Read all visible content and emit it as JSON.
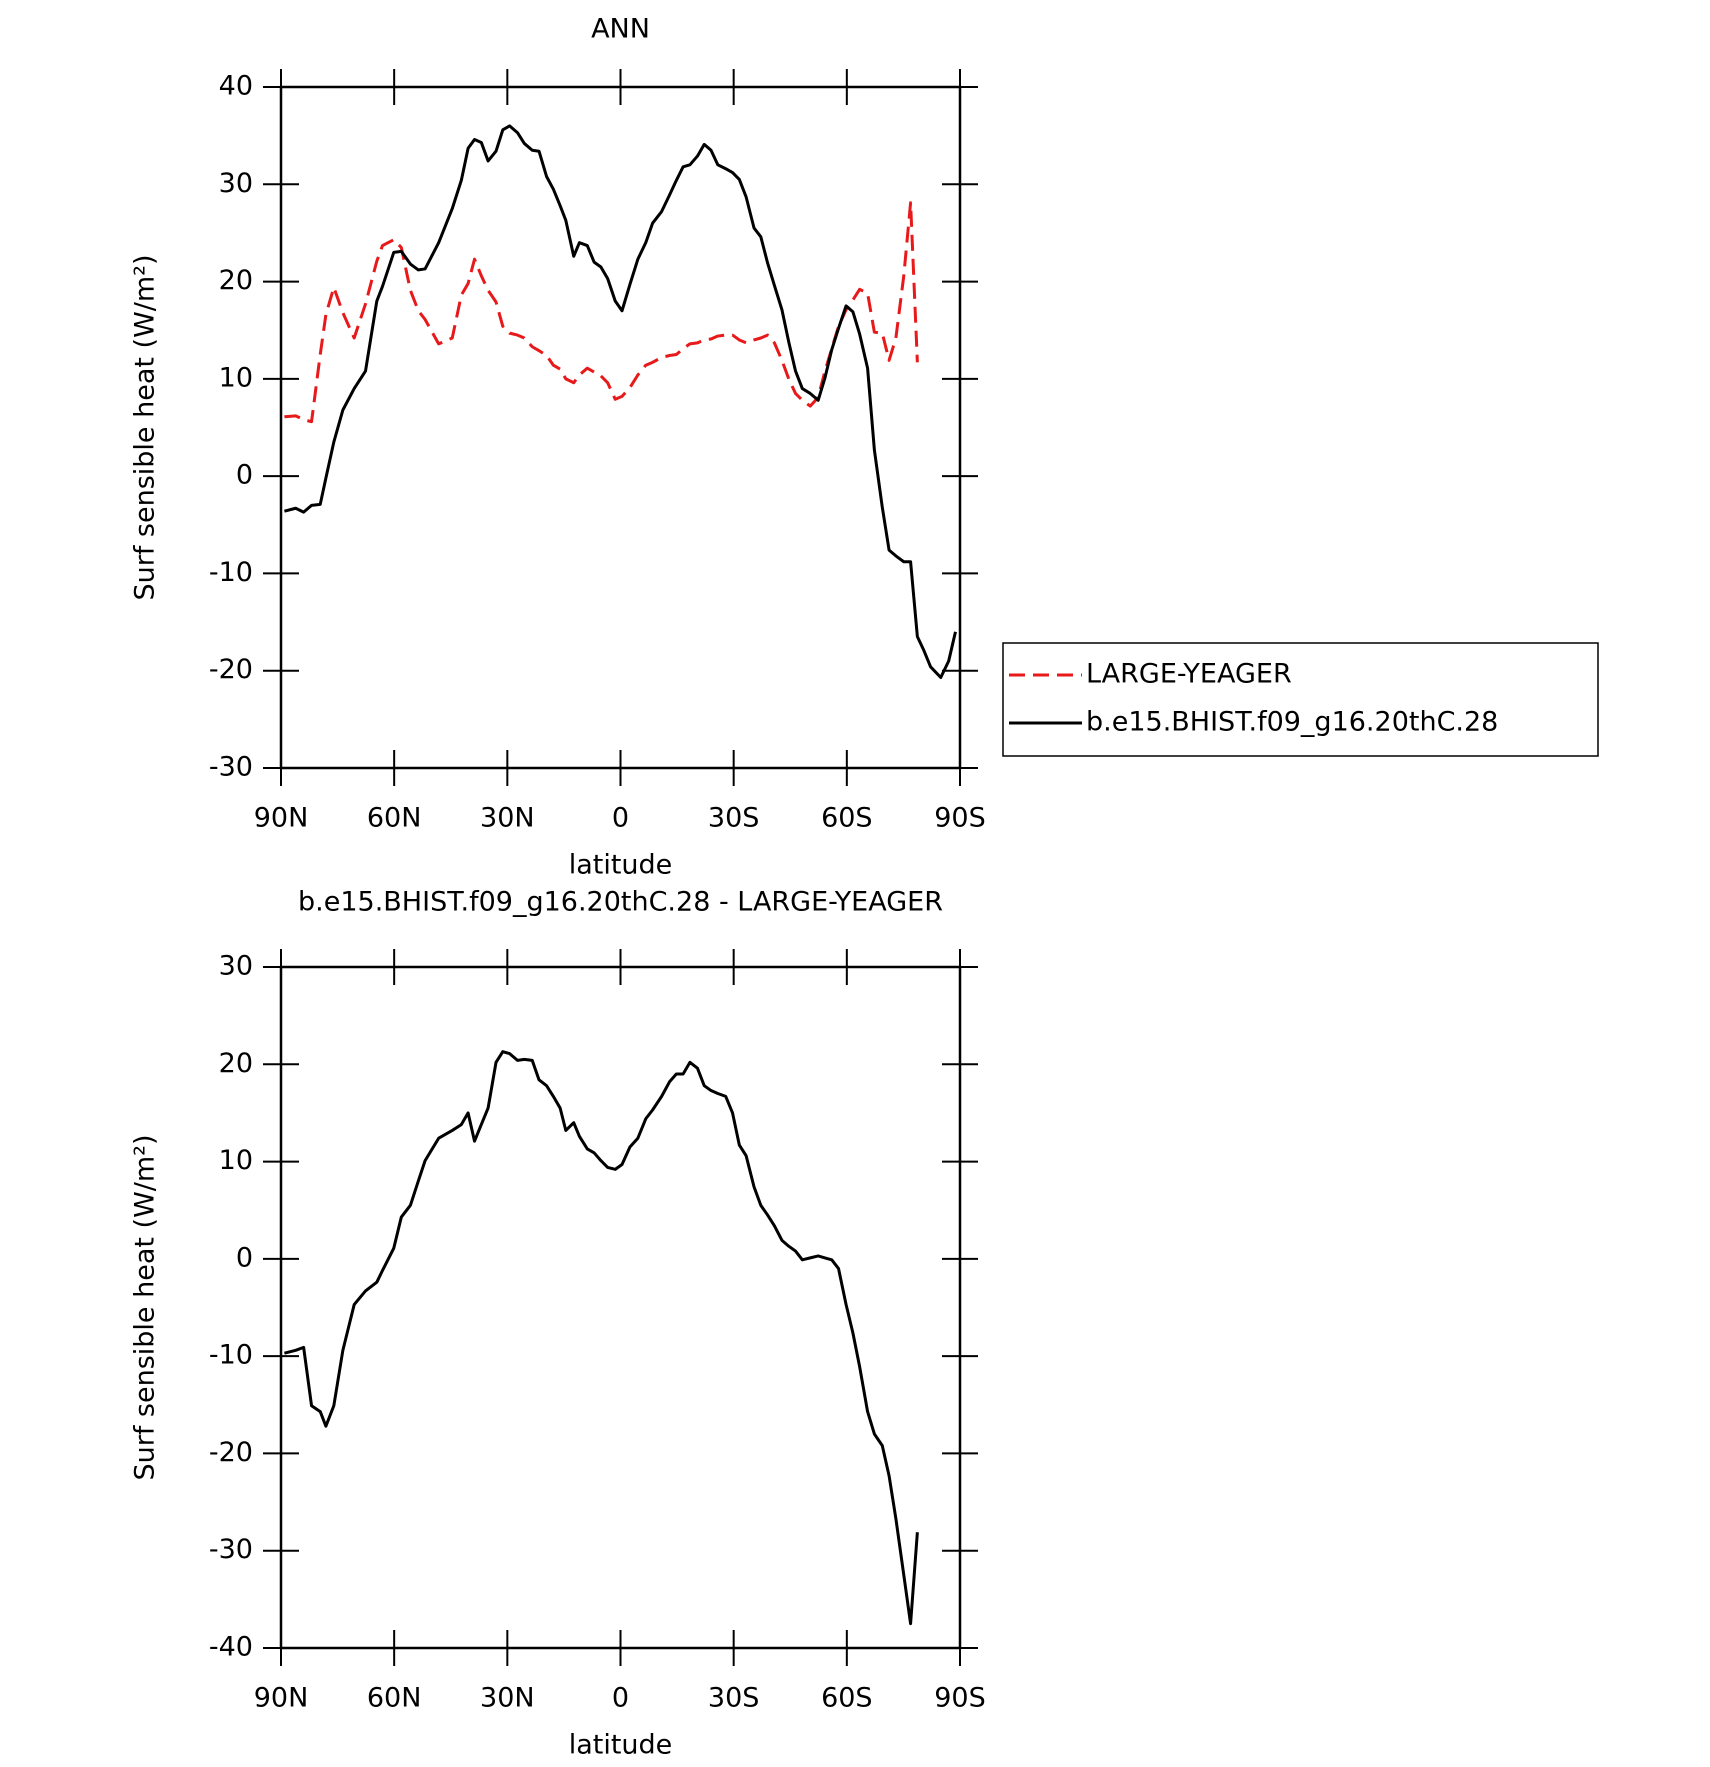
{
  "chart_data": [
    {
      "type": "line",
      "title": "ANN",
      "xlabel": "latitude",
      "ylabel": "Surf sensible heat (W/m²)",
      "x": [
        89.1,
        86.1,
        84.0,
        81.9,
        79.6,
        78.1,
        76.0,
        73.6,
        70.6,
        67.6,
        64.6,
        63.1,
        60.1,
        58.1,
        55.7,
        53.6,
        51.8,
        48.2,
        44.6,
        42.2,
        40.4,
        38.7,
        36.9,
        35.1,
        33.0,
        31.2,
        29.4,
        27.3,
        25.5,
        23.4,
        21.6,
        19.6,
        17.8,
        16.0,
        14.5,
        12.4,
        10.9,
        8.8,
        7.0,
        5.2,
        3.4,
        1.4,
        -0.4,
        -2.5,
        -4.6,
        -6.7,
        -8.5,
        -10.9,
        -13.0,
        -14.8,
        -16.6,
        -18.4,
        -20.4,
        -22.2,
        -24.0,
        -25.8,
        -27.9,
        -29.7,
        -31.5,
        -33.3,
        -35.4,
        -37.2,
        -39.0,
        -40.8,
        -42.8,
        -44.6,
        -46.4,
        -48.2,
        -50.3,
        -52.4,
        -54.2,
        -56.0,
        -57.8,
        -59.8,
        -61.6,
        -63.4,
        -65.5,
        -67.3,
        -69.4,
        -71.2,
        -73.0,
        -75.1,
        -76.9,
        -78.7,
        -80.4,
        -82.2,
        -84.9,
        -87.0,
        -88.8
      ],
      "series": [
        {
          "name": "LARGE-YEAGER",
          "color": "#e8191a",
          "dashed": true,
          "values": [
            6.1,
            6.2,
            5.8,
            5.6,
            12.5,
            16.6,
            19.4,
            16.8,
            14.2,
            17.7,
            22.1,
            23.7,
            24.3,
            23.5,
            19.1,
            17.0,
            16.1,
            13.6,
            14.2,
            18.6,
            19.8,
            22.3,
            20.6,
            19.1,
            17.9,
            15.4,
            14.7,
            14.5,
            14.2,
            13.3,
            12.9,
            12.4,
            11.4,
            11.0,
            10.0,
            9.6,
            10.4,
            11.1,
            10.7,
            10.3,
            9.6,
            7.9,
            8.2,
            9.1,
            10.4,
            11.4,
            11.7,
            12.2,
            12.4,
            12.5,
            13.1,
            13.6,
            13.7,
            14.0,
            14.1,
            14.4,
            14.5,
            14.5,
            14.0,
            13.7,
            14.0,
            14.2,
            14.5,
            13.7,
            11.9,
            10.0,
            8.5,
            7.8,
            7.2,
            8.1,
            10.8,
            13.1,
            15.4,
            17.1,
            18.1,
            19.2,
            18.8,
            14.8,
            14.7,
            11.9,
            14.2,
            20.6,
            28.1,
            11.7,
            null,
            null,
            null,
            null,
            null
          ]
        },
        {
          "name": "b.e15.BHIST.f09_g16.20thC.28",
          "color": "#000000",
          "dashed": false,
          "values": [
            -3.6,
            -3.3,
            -3.7,
            -3.0,
            -2.9,
            -0.2,
            3.5,
            6.8,
            9.0,
            10.8,
            18.0,
            19.5,
            23.0,
            23.1,
            21.8,
            21.2,
            21.3,
            24.0,
            27.5,
            30.4,
            33.7,
            34.6,
            34.3,
            32.4,
            33.4,
            35.6,
            36.0,
            35.3,
            34.2,
            33.5,
            33.4,
            30.8,
            29.5,
            27.8,
            26.3,
            22.6,
            24.0,
            23.7,
            22.0,
            21.5,
            20.3,
            18.0,
            17.0,
            19.7,
            22.3,
            24.0,
            26.0,
            27.2,
            28.9,
            30.4,
            31.8,
            32.0,
            32.9,
            34.1,
            33.5,
            32.0,
            31.6,
            31.2,
            30.5,
            28.7,
            25.5,
            24.6,
            21.9,
            19.6,
            17.1,
            13.8,
            10.8,
            9.0,
            8.5,
            7.8,
            10.1,
            13.0,
            15.2,
            17.5,
            16.9,
            14.6,
            11.1,
            2.7,
            -3.2,
            -7.6,
            -8.2,
            -8.8,
            -8.8,
            -16.5,
            -17.9,
            -19.6,
            -20.7,
            -19.0,
            -16.0
          ]
        }
      ],
      "xlim": [
        90,
        -90
      ],
      "xticks": [
        {
          "value": 90,
          "label": "90N"
        },
        {
          "value": 60,
          "label": "60N"
        },
        {
          "value": 30,
          "label": "30N"
        },
        0,
        {
          "value": -30,
          "label": "30S"
        },
        {
          "value": -60,
          "label": "60S"
        },
        {
          "value": -90,
          "label": "90S"
        }
      ],
      "ylim": [
        -30,
        40
      ],
      "yticks": [
        -30,
        -20,
        -10,
        0,
        10,
        20,
        30,
        40
      ],
      "legend": "right"
    },
    {
      "type": "line",
      "title": "b.e15.BHIST.f09_g16.20thC.28 - LARGE-YEAGER",
      "xlabel": "latitude",
      "ylabel": "Surf sensible heat (W/m²)",
      "x": [
        89.1,
        86.1,
        84.0,
        81.9,
        79.6,
        78.1,
        76.0,
        73.6,
        70.6,
        67.6,
        64.6,
        63.1,
        60.1,
        58.1,
        55.7,
        53.6,
        51.8,
        48.2,
        44.6,
        42.2,
        40.4,
        38.7,
        36.9,
        35.1,
        33.0,
        31.2,
        29.4,
        27.3,
        25.5,
        23.4,
        21.6,
        19.6,
        17.8,
        16.0,
        14.5,
        12.4,
        10.9,
        8.8,
        7.0,
        5.2,
        3.4,
        1.4,
        -0.4,
        -2.5,
        -4.6,
        -6.7,
        -8.5,
        -10.9,
        -13.0,
        -14.8,
        -16.6,
        -18.4,
        -20.4,
        -22.2,
        -24.0,
        -25.8,
        -27.9,
        -29.7,
        -31.5,
        -33.3,
        -35.4,
        -37.2,
        -39.0,
        -40.8,
        -42.8,
        -44.6,
        -46.4,
        -48.2,
        -50.3,
        -52.4,
        -54.2,
        -56.0,
        -57.8,
        -59.8,
        -61.6,
        -63.4,
        -65.5,
        -67.3,
        -69.4,
        -71.2,
        -73.0,
        -75.1,
        -76.9,
        -78.7
      ],
      "values": [
        -9.7,
        -9.4,
        -9.1,
        -15.1,
        -15.7,
        -17.2,
        -15.1,
        -9.4,
        -4.7,
        -3.3,
        -2.4,
        -1.2,
        1.1,
        4.3,
        5.5,
        8.0,
        10.1,
        12.4,
        13.2,
        13.8,
        15.0,
        12.1,
        13.8,
        15.5,
        20.2,
        21.3,
        21.1,
        20.4,
        20.5,
        20.4,
        18.4,
        17.8,
        16.7,
        15.5,
        13.2,
        14.0,
        12.6,
        11.3,
        10.9,
        10.1,
        9.4,
        9.2,
        9.7,
        11.5,
        12.4,
        14.4,
        15.3,
        16.7,
        18.2,
        19.0,
        19.0,
        20.2,
        19.6,
        17.8,
        17.3,
        17.0,
        16.7,
        15.0,
        11.7,
        10.6,
        7.4,
        5.5,
        4.5,
        3.4,
        1.9,
        1.3,
        0.8,
        -0.1,
        0.1,
        0.3,
        0.1,
        -0.1,
        -1.0,
        -4.7,
        -7.6,
        -11.1,
        -15.7,
        -18.0,
        -19.2,
        -22.3,
        -26.7,
        -32.5,
        -37.5,
        -28.1
      ],
      "color": "#000000",
      "xlim": [
        90,
        -90
      ],
      "xticks": [
        {
          "value": 90,
          "label": "90N"
        },
        {
          "value": 60,
          "label": "60N"
        },
        {
          "value": 30,
          "label": "30N"
        },
        0,
        {
          "value": -30,
          "label": "30S"
        },
        {
          "value": -60,
          "label": "60S"
        },
        {
          "value": -90,
          "label": "90S"
        }
      ],
      "ylim": [
        -40,
        30
      ],
      "yticks": [
        -40,
        -30,
        -20,
        -10,
        0,
        10,
        20,
        30
      ]
    }
  ]
}
